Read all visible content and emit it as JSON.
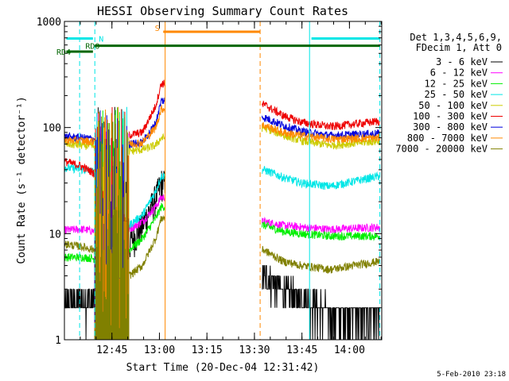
{
  "chart_data": {
    "type": "line",
    "title": "HESSI Observing Summary Count Rates",
    "xlabel": "Start Time (20-Dec-04 12:31:42)",
    "ylabel": "Count Rate (s⁻¹ detector⁻¹)",
    "yscale": "log",
    "ylim": [
      1,
      1000
    ],
    "xlim_minutes": [
      12.5,
      14.17
    ],
    "xticks": [
      {
        "t": 12.75,
        "label": "12:45"
      },
      {
        "t": 13.0,
        "label": "13:00"
      },
      {
        "t": 13.25,
        "label": "13:15"
      },
      {
        "t": 13.5,
        "label": "13:30"
      },
      {
        "t": 13.75,
        "label": "13:45"
      },
      {
        "t": 14.0,
        "label": "14:00"
      }
    ],
    "yticks": [
      {
        "v": 1,
        "label": "1"
      },
      {
        "v": 10,
        "label": "10"
      },
      {
        "v": 100,
        "label": "100"
      },
      {
        "v": 1000,
        "label": "1000"
      }
    ],
    "legend_header": [
      "Det 1,3,4,5,6,9,",
      "FDecim 1, Att 0"
    ],
    "legend_placement": "right",
    "footer": "5-Feb-2010 23:18",
    "flag_labels": [
      {
        "label": "N",
        "color": "#00e6e6"
      },
      {
        "label": "S",
        "color": "#ff8800"
      },
      {
        "label": "RD0",
        "color": "#006600"
      },
      {
        "label": "RD4",
        "color": "#006600"
      }
    ],
    "flags": [
      {
        "name": "N",
        "color": "#00e6e6",
        "y": 690,
        "segments": [
          [
            12.51,
            12.65
          ],
          [
            13.8,
            14.16
          ]
        ]
      },
      {
        "name": "S",
        "color": "#ff8800",
        "y": 800,
        "segments": [
          [
            13.02,
            13.53
          ]
        ]
      },
      {
        "name": "RD0",
        "color": "#006600",
        "y": 590,
        "segments": [
          [
            12.66,
            14.16
          ]
        ]
      },
      {
        "name": "RD4",
        "color": "#006600",
        "y": 520,
        "segments": [
          [
            12.51,
            12.65
          ]
        ]
      }
    ],
    "vlines": [
      {
        "t": 12.58,
        "color": "#00e6e6",
        "style": "dashed"
      },
      {
        "t": 12.66,
        "color": "#00e6e6",
        "style": "dashed"
      },
      {
        "t": 13.03,
        "color": "#ff8800",
        "style": "solid"
      },
      {
        "t": 13.53,
        "color": "#ff8800",
        "style": "dashed"
      },
      {
        "t": 13.79,
        "color": "#00e6e6",
        "style": "solid"
      },
      {
        "t": 14.16,
        "color": "#00e6e6",
        "style": "dashed"
      }
    ],
    "series": [
      {
        "name": "3 - 6 keV",
        "color": "#000000",
        "pre": [
          [
            12.5,
            2.0
          ],
          [
            12.55,
            2.2
          ],
          [
            12.62,
            2.3
          ],
          [
            12.66,
            2.5
          ]
        ],
        "rise": [
          [
            12.84,
            8
          ],
          [
            12.91,
            12
          ],
          [
            12.98,
            22
          ],
          [
            13.01,
            30
          ]
        ],
        "post": [
          [
            13.55,
            4.0
          ],
          [
            13.65,
            3.0
          ],
          [
            13.75,
            2.4
          ],
          [
            13.9,
            1.8
          ],
          [
            14.16,
            1.8
          ]
        ]
      },
      {
        "name": "6 - 12 keV",
        "color": "#ff00ff",
        "pre": [
          [
            12.5,
            10.8
          ],
          [
            12.6,
            11.0
          ],
          [
            12.66,
            10.5
          ]
        ],
        "rise": [
          [
            12.84,
            11
          ],
          [
            12.91,
            13
          ],
          [
            12.98,
            18
          ],
          [
            13.01,
            22
          ]
        ],
        "post": [
          [
            13.55,
            13
          ],
          [
            13.65,
            12
          ],
          [
            13.75,
            11.5
          ],
          [
            13.9,
            11
          ],
          [
            14.16,
            11.5
          ]
        ]
      },
      {
        "name": "12 - 25 keV",
        "color": "#00ee00",
        "pre": [
          [
            12.5,
            6.0
          ],
          [
            12.6,
            6.0
          ],
          [
            12.66,
            5.8
          ]
        ],
        "rise": [
          [
            12.84,
            7
          ],
          [
            12.91,
            9
          ],
          [
            12.98,
            14
          ],
          [
            13.01,
            18
          ]
        ],
        "post": [
          [
            13.55,
            12
          ],
          [
            13.65,
            10.5
          ],
          [
            13.75,
            10
          ],
          [
            13.9,
            9.5
          ],
          [
            14.16,
            9.5
          ]
        ]
      },
      {
        "name": "25 - 50 keV",
        "color": "#00e6e6",
        "pre": [
          [
            12.5,
            42
          ],
          [
            12.6,
            40
          ],
          [
            12.66,
            38
          ]
        ],
        "rise": [
          [
            12.84,
            12
          ],
          [
            12.91,
            15
          ],
          [
            12.98,
            25
          ],
          [
            13.01,
            35
          ]
        ],
        "post": [
          [
            13.55,
            40
          ],
          [
            13.65,
            34
          ],
          [
            13.75,
            30
          ],
          [
            13.9,
            28
          ],
          [
            14.16,
            35
          ]
        ]
      },
      {
        "name": "50 - 100 keV",
        "color": "#cccc00",
        "pre": [
          [
            12.5,
            70
          ],
          [
            12.6,
            68
          ],
          [
            12.66,
            66
          ]
        ],
        "rise": [
          [
            12.84,
            60
          ],
          [
            12.91,
            62
          ],
          [
            12.98,
            68
          ],
          [
            13.01,
            80
          ]
        ],
        "post": [
          [
            13.55,
            100
          ],
          [
            13.65,
            85
          ],
          [
            13.75,
            75
          ],
          [
            13.9,
            68
          ],
          [
            14.16,
            75
          ]
        ]
      },
      {
        "name": "100 - 300 keV",
        "color": "#ee0000",
        "pre": [
          [
            12.5,
            48
          ],
          [
            12.58,
            44
          ],
          [
            12.66,
            37
          ]
        ],
        "rise": [
          [
            12.84,
            85
          ],
          [
            12.91,
            90
          ],
          [
            12.98,
            160
          ],
          [
            13.01,
            260
          ]
        ],
        "post": [
          [
            13.55,
            165
          ],
          [
            13.65,
            130
          ],
          [
            13.75,
            112
          ],
          [
            13.9,
            102
          ],
          [
            14.16,
            115
          ]
        ]
      },
      {
        "name": "300 - 800 keV",
        "color": "#0000dd",
        "pre": [
          [
            12.5,
            82
          ],
          [
            12.6,
            80
          ],
          [
            12.66,
            78
          ]
        ],
        "rise": [
          [
            12.84,
            70
          ],
          [
            12.91,
            72
          ],
          [
            12.98,
            110
          ],
          [
            13.01,
            180
          ]
        ],
        "post": [
          [
            13.55,
            125
          ],
          [
            13.65,
            105
          ],
          [
            13.75,
            92
          ],
          [
            13.9,
            84
          ],
          [
            14.16,
            88
          ]
        ]
      },
      {
        "name": "800 - 7000 keV",
        "color": "#ff8800",
        "pre": [
          [
            12.5,
            76
          ],
          [
            12.6,
            75
          ],
          [
            12.66,
            74
          ]
        ],
        "rise": [
          [
            12.84,
            70
          ],
          [
            12.91,
            72
          ],
          [
            12.98,
            100
          ],
          [
            13.01,
            150
          ]
        ],
        "post": [
          [
            13.55,
            105
          ],
          [
            13.65,
            90
          ],
          [
            13.75,
            84
          ],
          [
            13.9,
            78
          ],
          [
            14.16,
            80
          ]
        ]
      },
      {
        "name": "7000 - 20000 keV",
        "color": "#808000",
        "pre": [
          [
            12.5,
            8.0
          ],
          [
            12.6,
            7.5
          ],
          [
            12.66,
            7.0
          ]
        ],
        "rise": [
          [
            12.84,
            4
          ],
          [
            12.91,
            5
          ],
          [
            12.98,
            9
          ],
          [
            13.01,
            14
          ]
        ],
        "post": [
          [
            13.55,
            7.0
          ],
          [
            13.65,
            5.5
          ],
          [
            13.75,
            5.0
          ],
          [
            13.9,
            4.6
          ],
          [
            14.16,
            5.5
          ]
        ]
      }
    ]
  }
}
